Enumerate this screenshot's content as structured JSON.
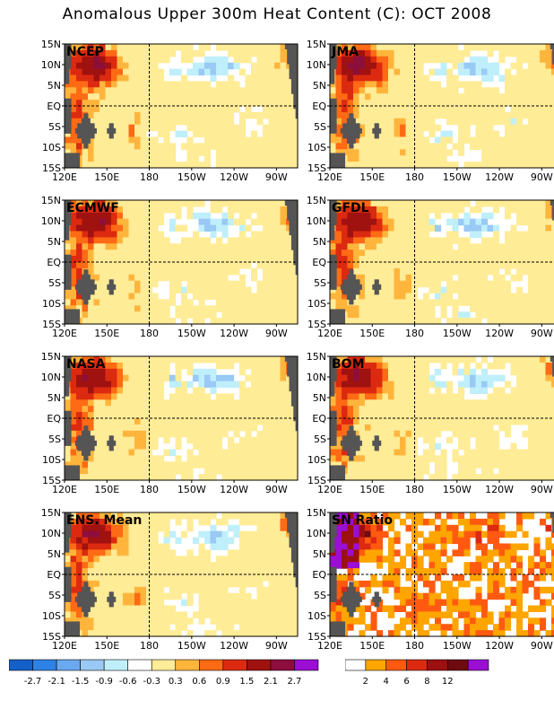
{
  "title": "Anomalous Upper 300m Heat Content (C): OCT 2008",
  "colors": {
    "land": "#555555",
    "anomaly_bins": [
      "#1560c8",
      "#2e82e6",
      "#6aa8f0",
      "#99c9f4",
      "#bfeffb",
      "#ffffff",
      "#ffec96",
      "#ffb53c",
      "#ff6a14",
      "#dc2a10",
      "#a01210",
      "#8c0e3c",
      "#9b0ed4"
    ],
    "sn_bins": [
      "#ffffff",
      "#ffa500",
      "#ff5a10",
      "#dc2a10",
      "#9c1010",
      "#6e0a10",
      "#9b0ed4"
    ]
  },
  "chart_data": {
    "type": "heatmap",
    "x_ticks": [
      "120E",
      "150E",
      "180",
      "150W",
      "120W",
      "90W"
    ],
    "y_ticks": [
      "15N",
      "10N",
      "5N",
      "EQ",
      "5S",
      "10S",
      "15S"
    ],
    "xlim_deg_east": [
      120,
      285
    ],
    "ylim_deg_north": [
      -15,
      15
    ],
    "reference_lines": {
      "equator_deg": 0,
      "dateline_deg_east": 180
    },
    "panels": [
      {
        "name": "NCEP",
        "field": "anomaly"
      },
      {
        "name": "JMA",
        "field": "anomaly"
      },
      {
        "name": "ECMWF",
        "field": "anomaly"
      },
      {
        "name": "GFDL",
        "field": "anomaly"
      },
      {
        "name": "NASA",
        "field": "anomaly"
      },
      {
        "name": "BOM",
        "field": "anomaly"
      },
      {
        "name": "ENS. Mean",
        "field": "anomaly"
      },
      {
        "name": "SN Ratio",
        "field": "sn"
      }
    ],
    "anomaly_colorbar": {
      "labels": [
        "-2.7",
        "-2.1",
        "-1.5",
        "-0.9",
        "-0.6",
        "-0.3",
        "0.3",
        "0.6",
        "0.9",
        "1.5",
        "2.1",
        "2.7"
      ],
      "bins": 13
    },
    "sn_colorbar": {
      "labels": [
        "2",
        "4",
        "6",
        "8",
        "12"
      ],
      "bins": 7
    }
  }
}
